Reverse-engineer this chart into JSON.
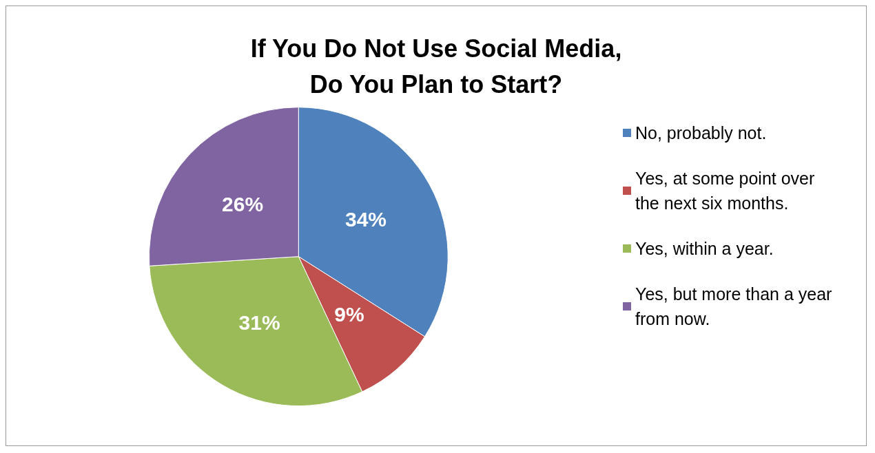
{
  "chart_data": {
    "type": "pie",
    "title": "If You Do Not Use Social Media,\nDo You Plan to Start?",
    "categories": [
      "No, probably not.",
      "Yes, at some point over the next six months.",
      "Yes, within a year.",
      "Yes, but more than a year from now."
    ],
    "values": [
      34,
      9,
      31,
      26
    ],
    "colors": [
      "#4f81bd",
      "#c0504d",
      "#9bbb59",
      "#8064a2"
    ],
    "value_labels": [
      "34%",
      "9%",
      "31%",
      "26%"
    ],
    "legend": "right"
  }
}
